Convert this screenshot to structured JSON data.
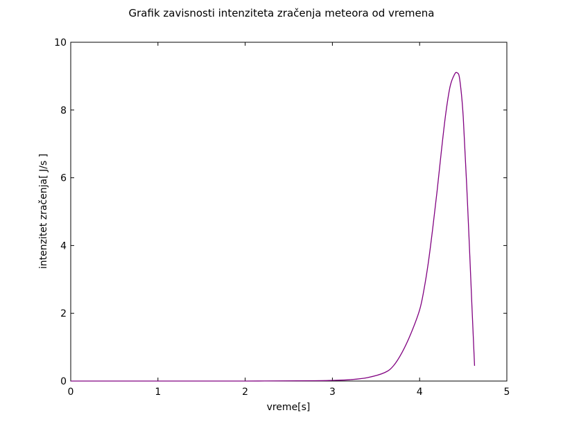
{
  "chart_data": {
    "type": "line",
    "title": "Grafik zavisnosti intenziteta zračenja meteora od vremena",
    "xlabel": "vreme[s]",
    "ylabel": "intenzitet zračenja[ J/s ]",
    "xlim": [
      0,
      5
    ],
    "ylim": [
      0,
      10
    ],
    "xticks": [
      "0",
      "1",
      "2",
      "3",
      "4",
      "5"
    ],
    "yticks": [
      "0",
      "2",
      "4",
      "6",
      "8",
      "10"
    ],
    "grid": false,
    "series": [
      {
        "color": "#800080",
        "x": [
          0,
          1.0,
          2.0,
          2.8,
          3.0,
          3.2,
          3.4,
          3.6,
          3.7,
          3.8,
          3.9,
          4.0,
          4.05,
          4.1,
          4.15,
          4.2,
          4.25,
          4.3,
          4.35,
          4.4,
          4.43,
          4.46,
          4.5,
          4.55,
          4.6,
          4.63
        ],
        "y": [
          0,
          0,
          0,
          0.01,
          0.02,
          0.04,
          0.1,
          0.25,
          0.45,
          0.85,
          1.4,
          2.1,
          2.7,
          3.5,
          4.5,
          5.6,
          6.8,
          7.9,
          8.7,
          9.05,
          9.1,
          8.9,
          7.8,
          5.2,
          2.2,
          0.45
        ]
      }
    ]
  }
}
